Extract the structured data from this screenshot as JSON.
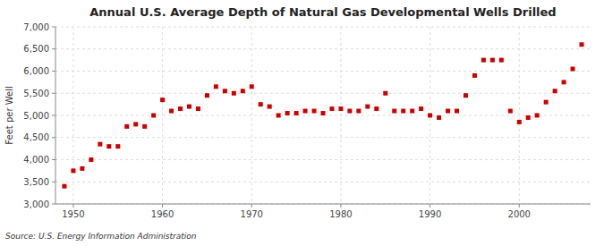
{
  "chart_data": {
    "type": "scatter",
    "title": "Annual U.S. Average Depth of Natural Gas Developmental Wells Drilled",
    "ylabel": "Feet per Well",
    "source": "Source: U.S. Energy Information Administration",
    "x": [
      1949,
      1950,
      1951,
      1952,
      1953,
      1954,
      1955,
      1956,
      1957,
      1958,
      1959,
      1960,
      1961,
      1962,
      1963,
      1964,
      1965,
      1966,
      1967,
      1968,
      1969,
      1970,
      1971,
      1972,
      1973,
      1974,
      1975,
      1976,
      1977,
      1978,
      1979,
      1980,
      1981,
      1982,
      1983,
      1984,
      1985,
      1986,
      1987,
      1988,
      1989,
      1990,
      1991,
      1992,
      1993,
      1994,
      1995,
      1996,
      1997,
      1998,
      1999,
      2000,
      2001,
      2002,
      2003,
      2004,
      2005,
      2006,
      2007
    ],
    "values": [
      3400,
      3750,
      3800,
      4000,
      4350,
      4300,
      4300,
      4750,
      4800,
      4750,
      5000,
      5350,
      5100,
      5150,
      5200,
      5150,
      5450,
      5650,
      5550,
      5500,
      5550,
      5650,
      5250,
      5200,
      5000,
      5050,
      5050,
      5100,
      5100,
      5050,
      5150,
      5150,
      5100,
      5100,
      5200,
      5150,
      5500,
      5100,
      5100,
      5100,
      5150,
      5000,
      4950,
      5100,
      5100,
      5450,
      5900,
      6250,
      6250,
      6250,
      5100,
      4850,
      4950,
      5000,
      5300,
      5550,
      5750,
      6050,
      6600
    ],
    "color": "#cc0000",
    "marker": "square",
    "xlim": [
      1948,
      2008
    ],
    "ylim": [
      3000,
      7000
    ],
    "xticks": [
      1950,
      1960,
      1970,
      1980,
      1990,
      2000
    ],
    "yticks": [
      {
        "value": 3000,
        "label": "3,000"
      },
      {
        "value": 3500,
        "label": "3,500"
      },
      {
        "value": 4000,
        "label": "4,000"
      },
      {
        "value": 4500,
        "label": "4,500"
      },
      {
        "value": 5000,
        "label": "5,000"
      },
      {
        "value": 5500,
        "label": "5,500"
      },
      {
        "value": 6000,
        "label": "6,000"
      },
      {
        "value": 6500,
        "label": "6,500"
      },
      {
        "value": 7000,
        "label": "7,000"
      }
    ],
    "grid": true
  }
}
